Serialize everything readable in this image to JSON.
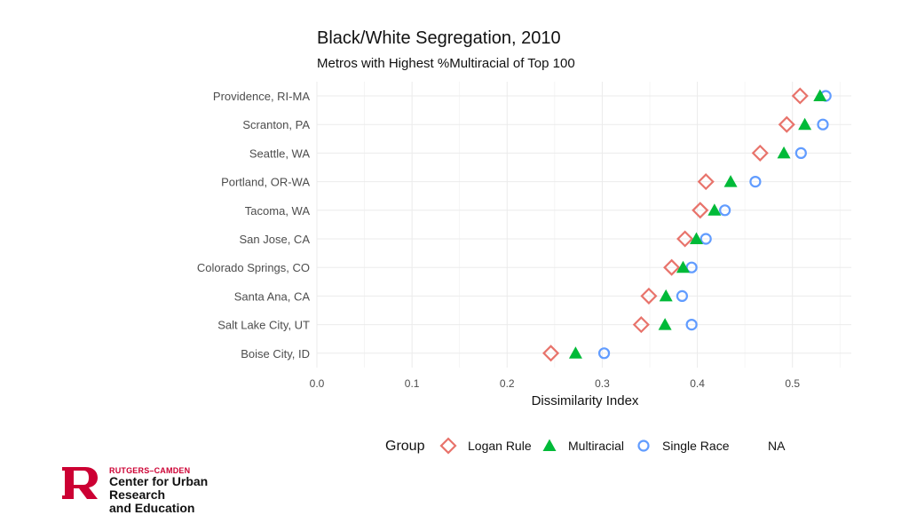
{
  "chart_data": {
    "type": "dot",
    "title": "Black/White Segregation, 2010",
    "subtitle": "Metros with Highest %Multiracial of Top 100",
    "xlabel": "Dissimilarity Index",
    "xlim": [
      0.0,
      0.56
    ],
    "xticks": [
      "0.0",
      "0.1",
      "0.2",
      "0.3",
      "0.4",
      "0.5"
    ],
    "xtick_values": [
      0.0,
      0.1,
      0.2,
      0.3,
      0.4,
      0.5
    ],
    "categories": [
      "Providence, RI-MA",
      "Scranton, PA",
      "Seattle, WA",
      "Portland, OR-WA",
      "Tacoma, WA",
      "San Jose, CA",
      "Colorado Springs, CO",
      "Santa Ana, CA",
      "Salt Lake City, UT",
      "Boise City, ID"
    ],
    "series": [
      {
        "name": "Logan Rule",
        "shape": "diamond",
        "color": "#e8736b",
        "values": [
          0.508,
          0.494,
          0.466,
          0.409,
          0.403,
          0.387,
          0.373,
          0.349,
          0.341,
          0.246
        ]
      },
      {
        "name": "Multiracial",
        "shape": "triangle",
        "color": "#00ba38",
        "values": [
          0.529,
          0.513,
          0.491,
          0.435,
          0.418,
          0.399,
          0.385,
          0.367,
          0.366,
          0.272
        ]
      },
      {
        "name": "Single Race",
        "shape": "circle",
        "color": "#619cff",
        "values": [
          0.535,
          0.532,
          0.509,
          0.461,
          0.429,
          0.409,
          0.394,
          0.384,
          0.394,
          0.302
        ]
      }
    ],
    "legend": {
      "title": "Group",
      "position": "bottom",
      "items": [
        "Logan Rule",
        "Multiracial",
        "Single Race",
        "NA"
      ]
    }
  },
  "logo": {
    "line1": "RUTGERS–CAMDEN",
    "line2": "Center for Urban Research",
    "line3": "and Education"
  }
}
